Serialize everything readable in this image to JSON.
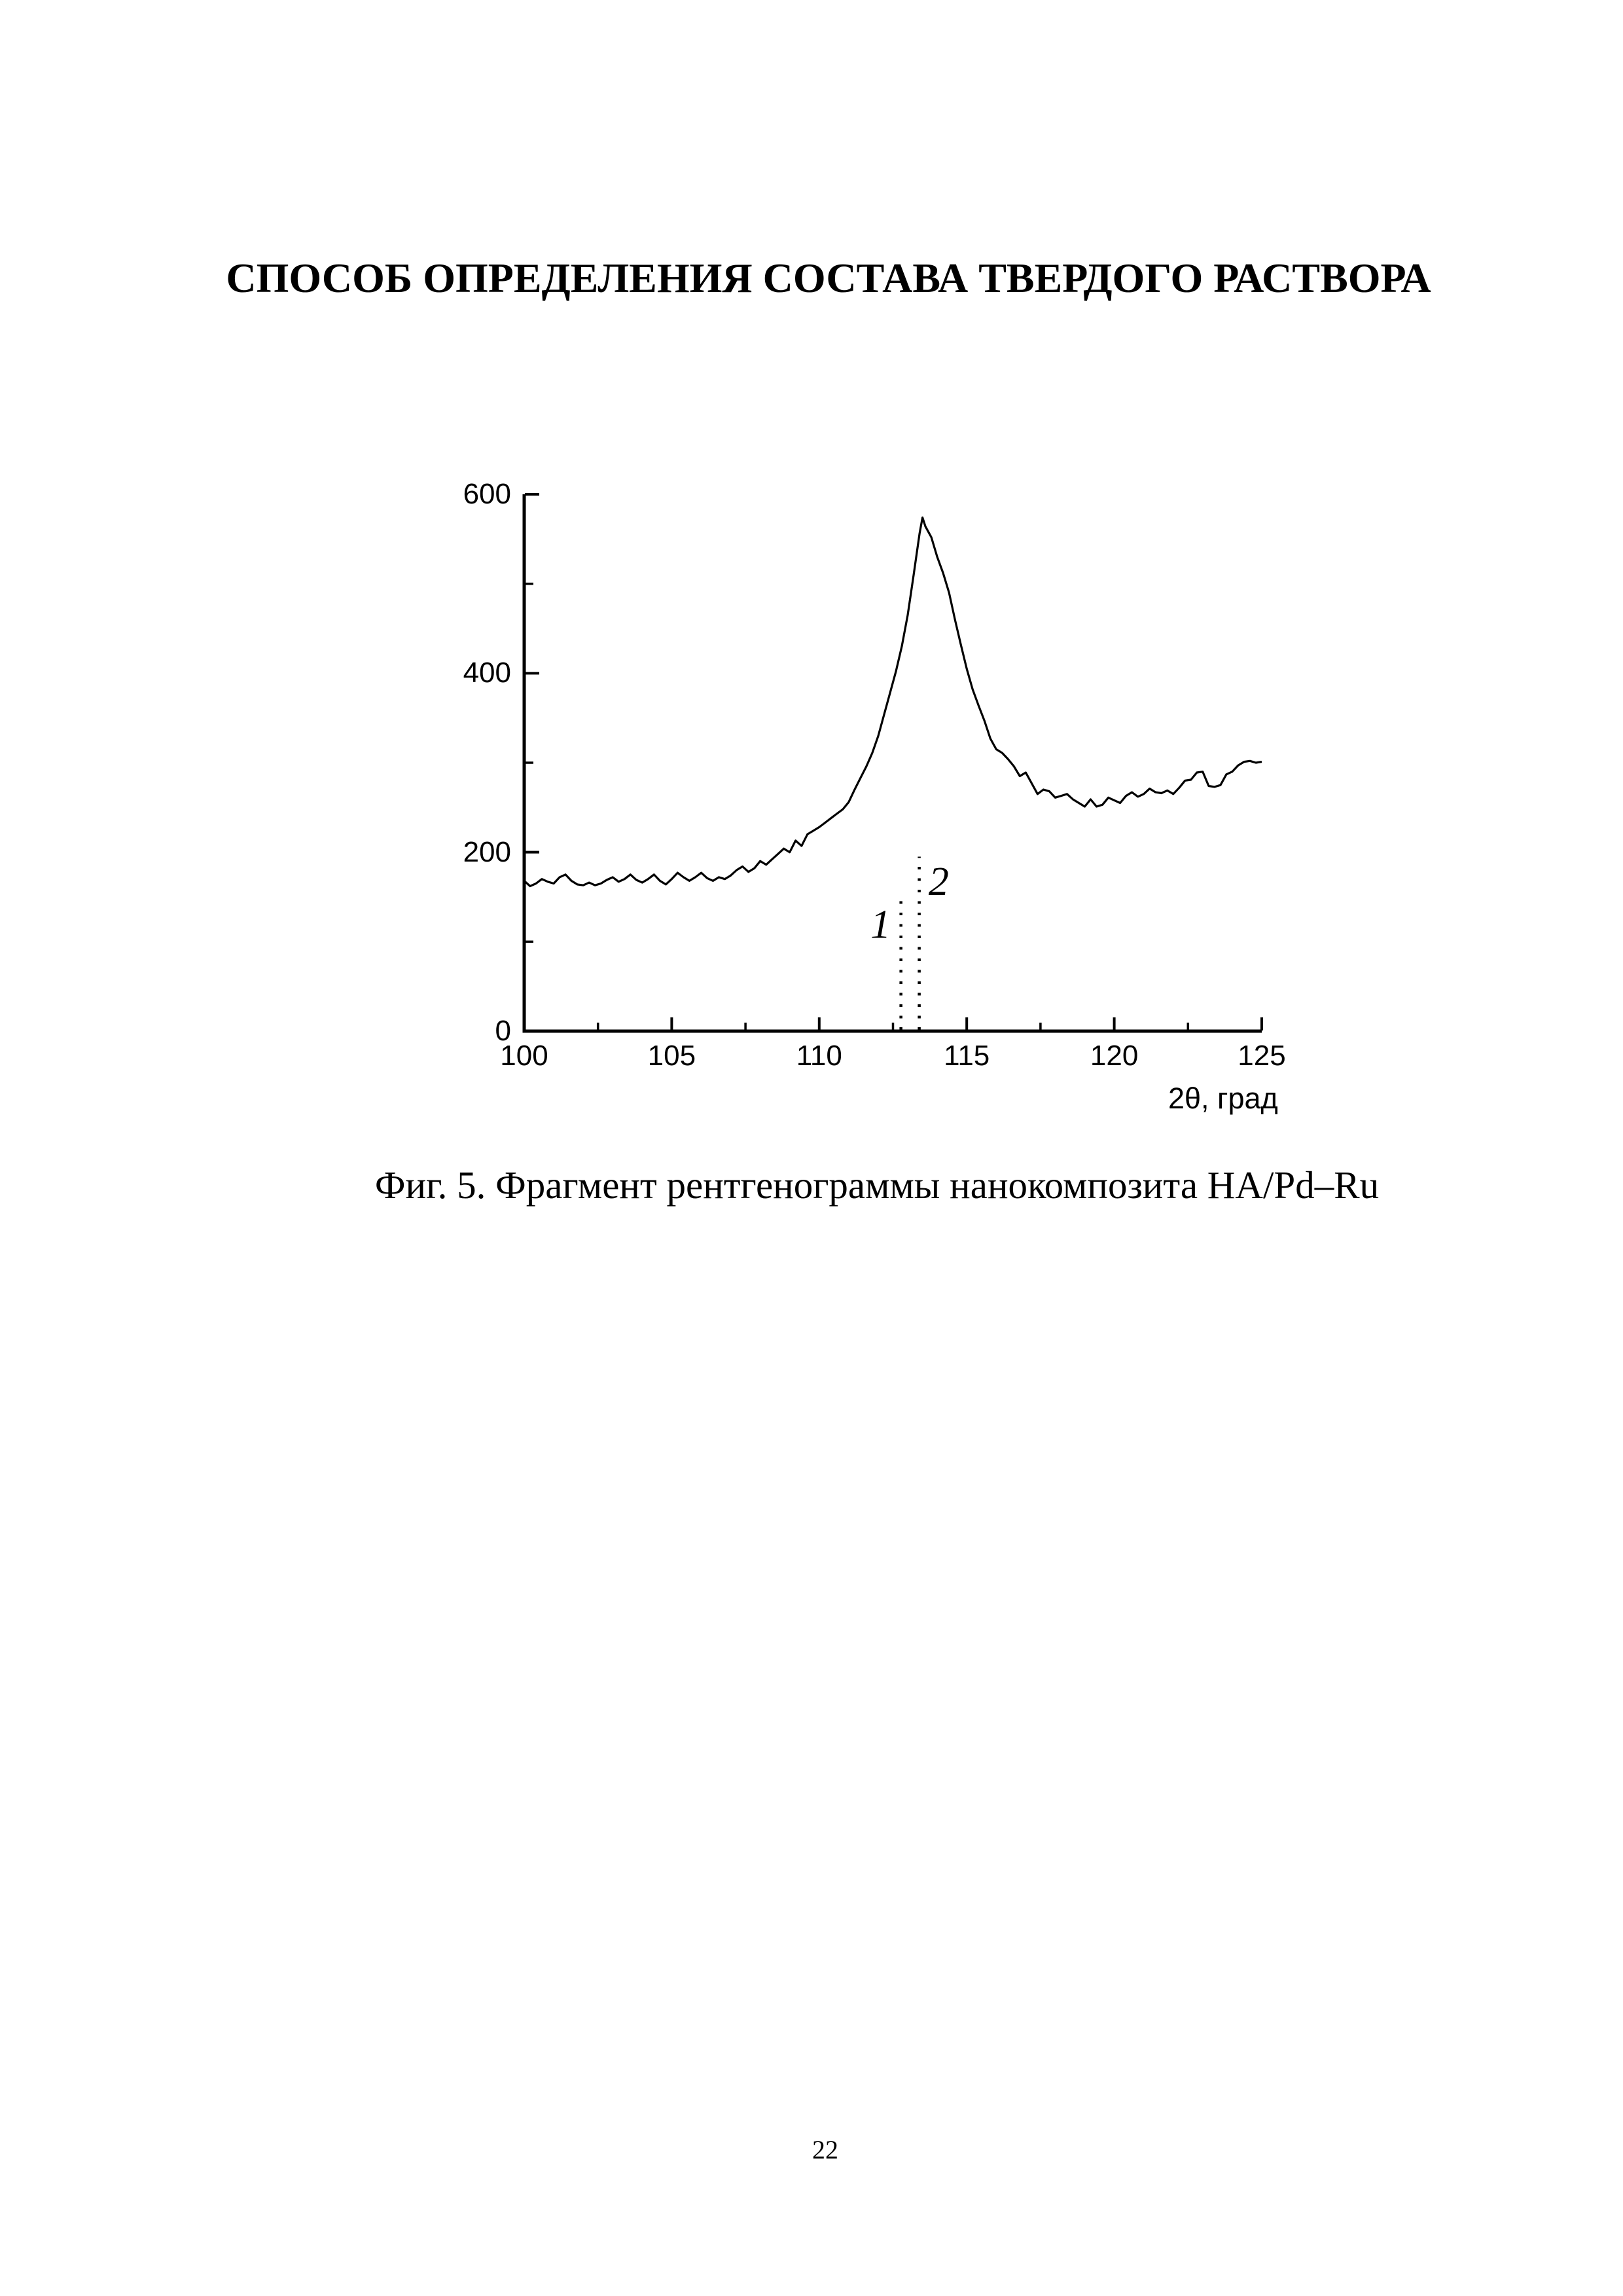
{
  "document": {
    "title": "СПОСОБ ОПРЕДЕЛЕНИЯ СОСТАВА ТВЕРДОГО РАСТВОРА",
    "figure_caption": "Фиг. 5. Фрагмент рентгенограммы нанокомпозита HA/Pd–Ru",
    "page_number": "22"
  },
  "chart_data": {
    "type": "line",
    "title": "",
    "xlabel": "2θ, град",
    "ylabel": "",
    "xlim": [
      100,
      125
    ],
    "ylim": [
      0,
      600
    ],
    "grid": false,
    "legend": false,
    "line_color": "#000000",
    "background_color": "#ffffff",
    "x_tick_labels": [
      "100",
      "105",
      "110",
      "115",
      "120",
      "125"
    ],
    "x_ticks_major": [
      100,
      105,
      110,
      115,
      120,
      125
    ],
    "x_ticks_minor": [
      102.5,
      107.5,
      112.5,
      117.5,
      122.5
    ],
    "y_tick_labels": [
      "0",
      "200",
      "400",
      "600"
    ],
    "y_ticks_major": [
      0,
      200,
      400,
      600
    ],
    "y_ticks_minor": [
      100,
      300,
      500
    ],
    "series": [
      {
        "name": "curve",
        "x": [
          100.0,
          100.2,
          100.4,
          100.6,
          100.8,
          101.0,
          101.2,
          101.4,
          101.6,
          101.8,
          102.0,
          102.2,
          102.4,
          102.6,
          102.8,
          103.0,
          103.2,
          103.4,
          103.6,
          103.8,
          104.0,
          104.2,
          104.4,
          104.6,
          104.8,
          105.0,
          105.2,
          105.4,
          105.6,
          105.8,
          106.0,
          106.2,
          106.4,
          106.6,
          106.8,
          107.0,
          107.2,
          107.4,
          107.6,
          107.8,
          108.0,
          108.2,
          108.4,
          108.6,
          108.8,
          109.0,
          109.2,
          109.4,
          109.6,
          109.8,
          110.0,
          110.2,
          110.4,
          110.6,
          110.8,
          111.0,
          111.2,
          111.4,
          111.6,
          111.8,
          112.0,
          112.2,
          112.4,
          112.6,
          112.8,
          113.0,
          113.2,
          113.4,
          113.5,
          113.6,
          113.8,
          114.0,
          114.2,
          114.4,
          114.6,
          114.8,
          115.0,
          115.2,
          115.4,
          115.6,
          115.8,
          116.0,
          116.2,
          116.4,
          116.6,
          116.8,
          117.0,
          117.2,
          117.4,
          117.6,
          117.8,
          118.0,
          118.2,
          118.4,
          118.6,
          118.8,
          119.0,
          119.2,
          119.4,
          119.6,
          119.8,
          120.0,
          120.2,
          120.4,
          120.6,
          120.8,
          121.0,
          121.2,
          121.4,
          121.6,
          121.8,
          122.0,
          122.2,
          122.4,
          122.6,
          122.8,
          123.0,
          123.2,
          123.4,
          123.6,
          123.8,
          124.0,
          124.2,
          124.4,
          124.6,
          124.8,
          125.0
        ],
        "y": [
          168,
          162,
          165,
          170,
          167,
          165,
          172,
          175,
          168,
          164,
          163,
          166,
          163,
          165,
          169,
          172,
          167,
          170,
          175,
          169,
          166,
          170,
          175,
          168,
          164,
          170,
          177,
          172,
          168,
          172,
          177,
          171,
          168,
          172,
          170,
          174,
          180,
          184,
          178,
          182,
          190,
          186,
          192,
          198,
          204,
          200,
          213,
          207,
          220,
          224,
          228,
          233,
          238,
          243,
          248,
          256,
          270,
          283,
          296,
          311,
          330,
          354,
          378,
          402,
          430,
          465,
          510,
          556,
          574,
          564,
          552,
          530,
          512,
          490,
          460,
          432,
          405,
          382,
          364,
          347,
          327,
          315,
          311,
          304,
          296,
          285,
          289,
          277,
          265,
          270,
          268,
          261,
          263,
          265,
          259,
          255,
          251,
          259,
          251,
          253,
          261,
          258,
          255,
          263,
          267,
          262,
          265,
          271,
          267,
          266,
          269,
          265,
          272,
          280,
          281,
          289,
          290,
          274,
          273,
          275,
          287,
          290,
          297,
          301,
          302,
          300,
          301
        ]
      }
    ],
    "annotations": [
      {
        "label": "1",
        "line_x": 112.77,
        "line_y_from": 0,
        "line_y_to": 150,
        "label_x": 112.08,
        "label_y": 119
      },
      {
        "label": "2",
        "line_x": 113.39,
        "line_y_from": 0,
        "line_y_to": 195,
        "label_x": 114.05,
        "label_y": 167
      }
    ]
  }
}
